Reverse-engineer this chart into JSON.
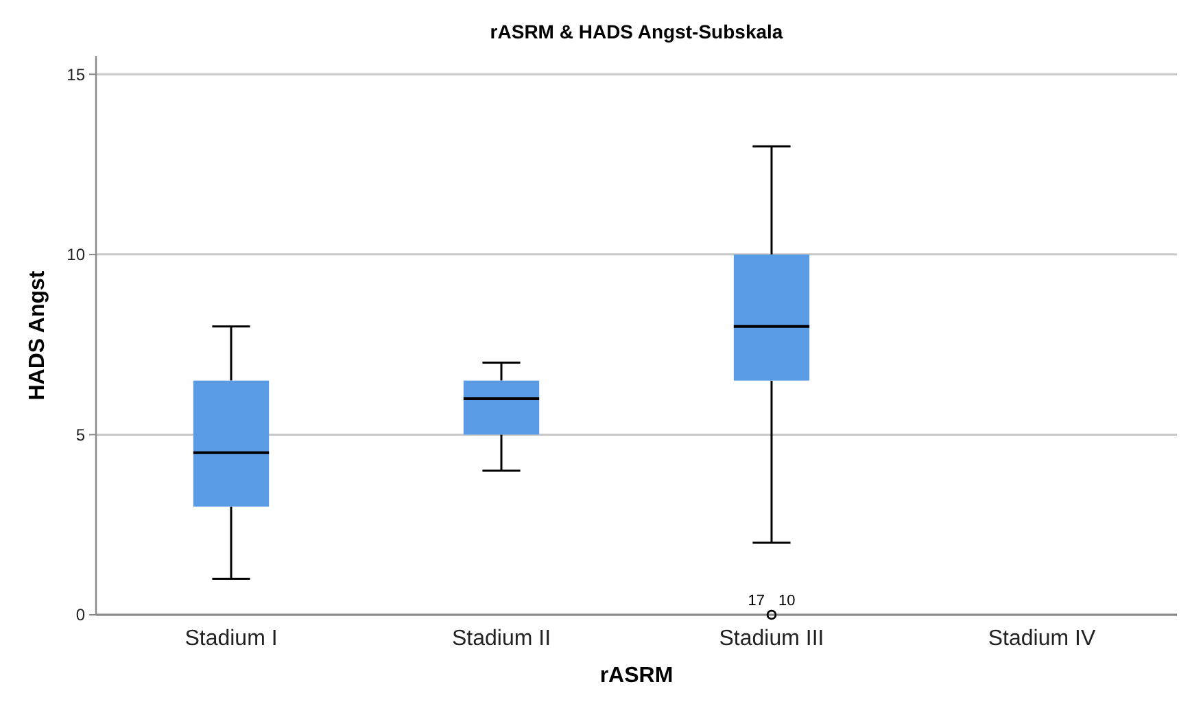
{
  "chart_data": {
    "type": "box",
    "title": "rASRM & HADS Angst-Subskala",
    "xlabel": "rASRM",
    "ylabel": "HADS Angst",
    "categories": [
      "Stadium I",
      "Stadium II",
      "Stadium III",
      "Stadium IV"
    ],
    "boxes": [
      {
        "low": 1,
        "q1": 3,
        "median": 4.5,
        "q3": 6.5,
        "high": 8
      },
      {
        "low": 4,
        "q1": 5,
        "median": 6,
        "q3": 6.5,
        "high": 7
      },
      {
        "low": 2,
        "q1": 6.5,
        "median": 8,
        "q3": 10,
        "high": 13,
        "outliers": [
          0,
          0
        ]
      },
      null
    ],
    "color": "#5a9be6",
    "ylim": [
      0,
      15.5
    ],
    "yticks": [
      0,
      5,
      10,
      15
    ],
    "grid": "y",
    "annotations": [
      "17",
      "10"
    ]
  }
}
